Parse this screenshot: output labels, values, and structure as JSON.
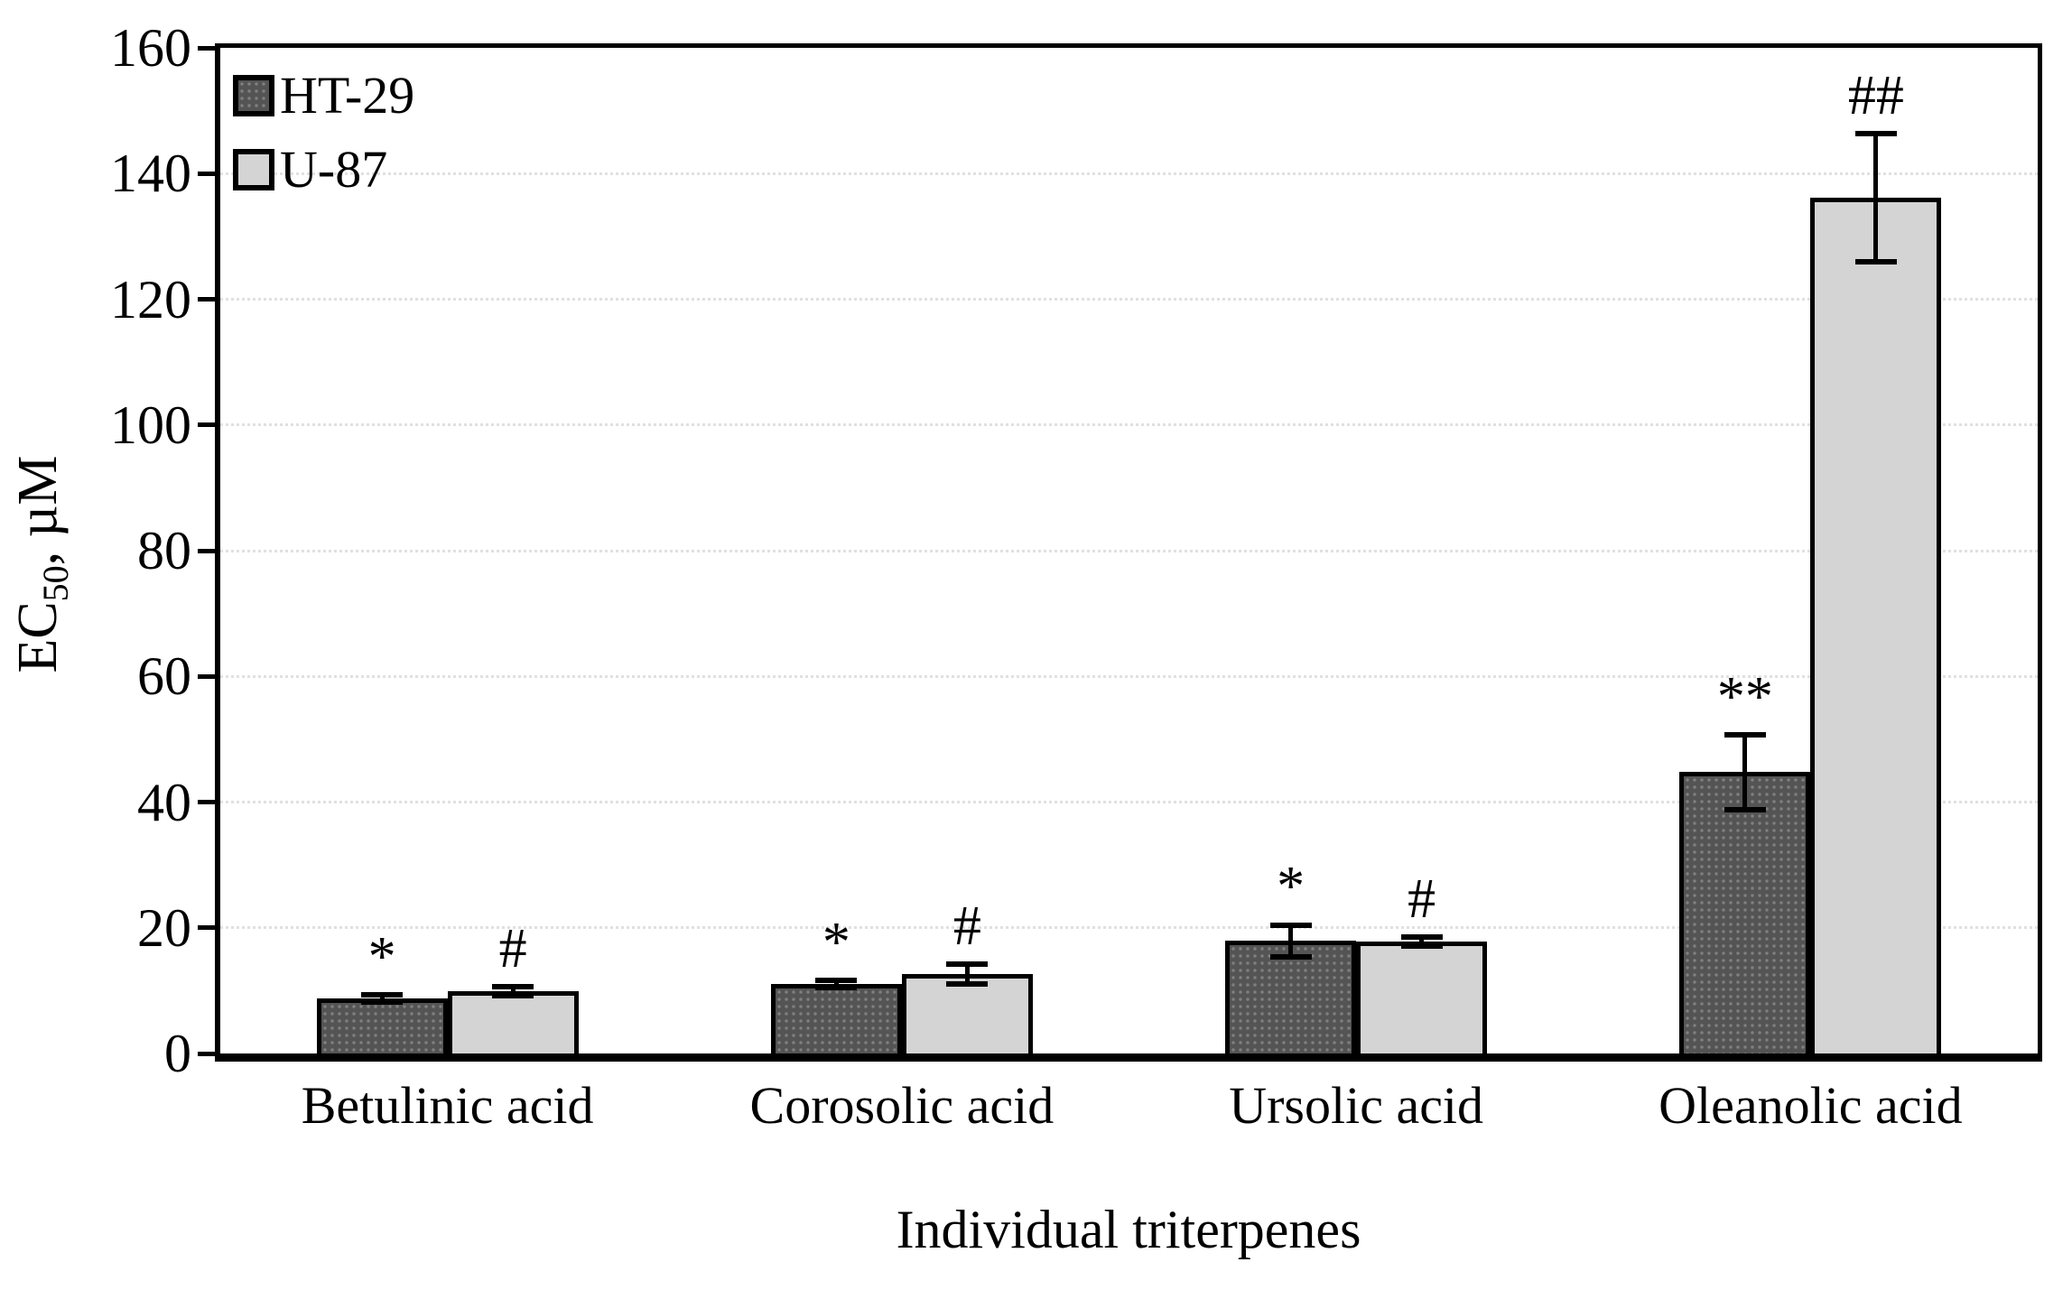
{
  "chart_data": {
    "type": "bar",
    "title": "",
    "xlabel": "Individual triterpenes",
    "ylabel": "EC50, µM",
    "ylabel_parts": {
      "prefix": "EC",
      "subscript": "50",
      "suffix": ", µM"
    },
    "categories": [
      "Betulinic acid",
      "Corosolic acid",
      "Ursolic acid",
      "Oleanolic acid"
    ],
    "series": [
      {
        "name": "HT-29",
        "values": [
          8.8,
          11.0,
          17.9,
          44.8
        ],
        "errors": [
          1.0,
          1.0,
          3.0,
          6.4
        ],
        "annotations": [
          "*",
          "*",
          "*",
          "**"
        ],
        "fill": "#545454",
        "pattern": "dots"
      },
      {
        "name": "U-87",
        "values": [
          9.9,
          12.7,
          17.8,
          136.2
        ],
        "errors": [
          1.1,
          2.0,
          1.2,
          10.6
        ],
        "annotations": [
          "#",
          "#",
          "#",
          "##"
        ],
        "fill": "#d4d4d4",
        "pattern": "none"
      }
    ],
    "ylim": [
      0,
      160
    ],
    "yticks": [
      0,
      20,
      40,
      60,
      80,
      100,
      120,
      140,
      160
    ],
    "grid": true,
    "legend_position": "top-left",
    "colors": {
      "bar_border": "#000000",
      "grid": "#e0e0e0",
      "axis": "#000000",
      "background": "#ffffff"
    }
  }
}
